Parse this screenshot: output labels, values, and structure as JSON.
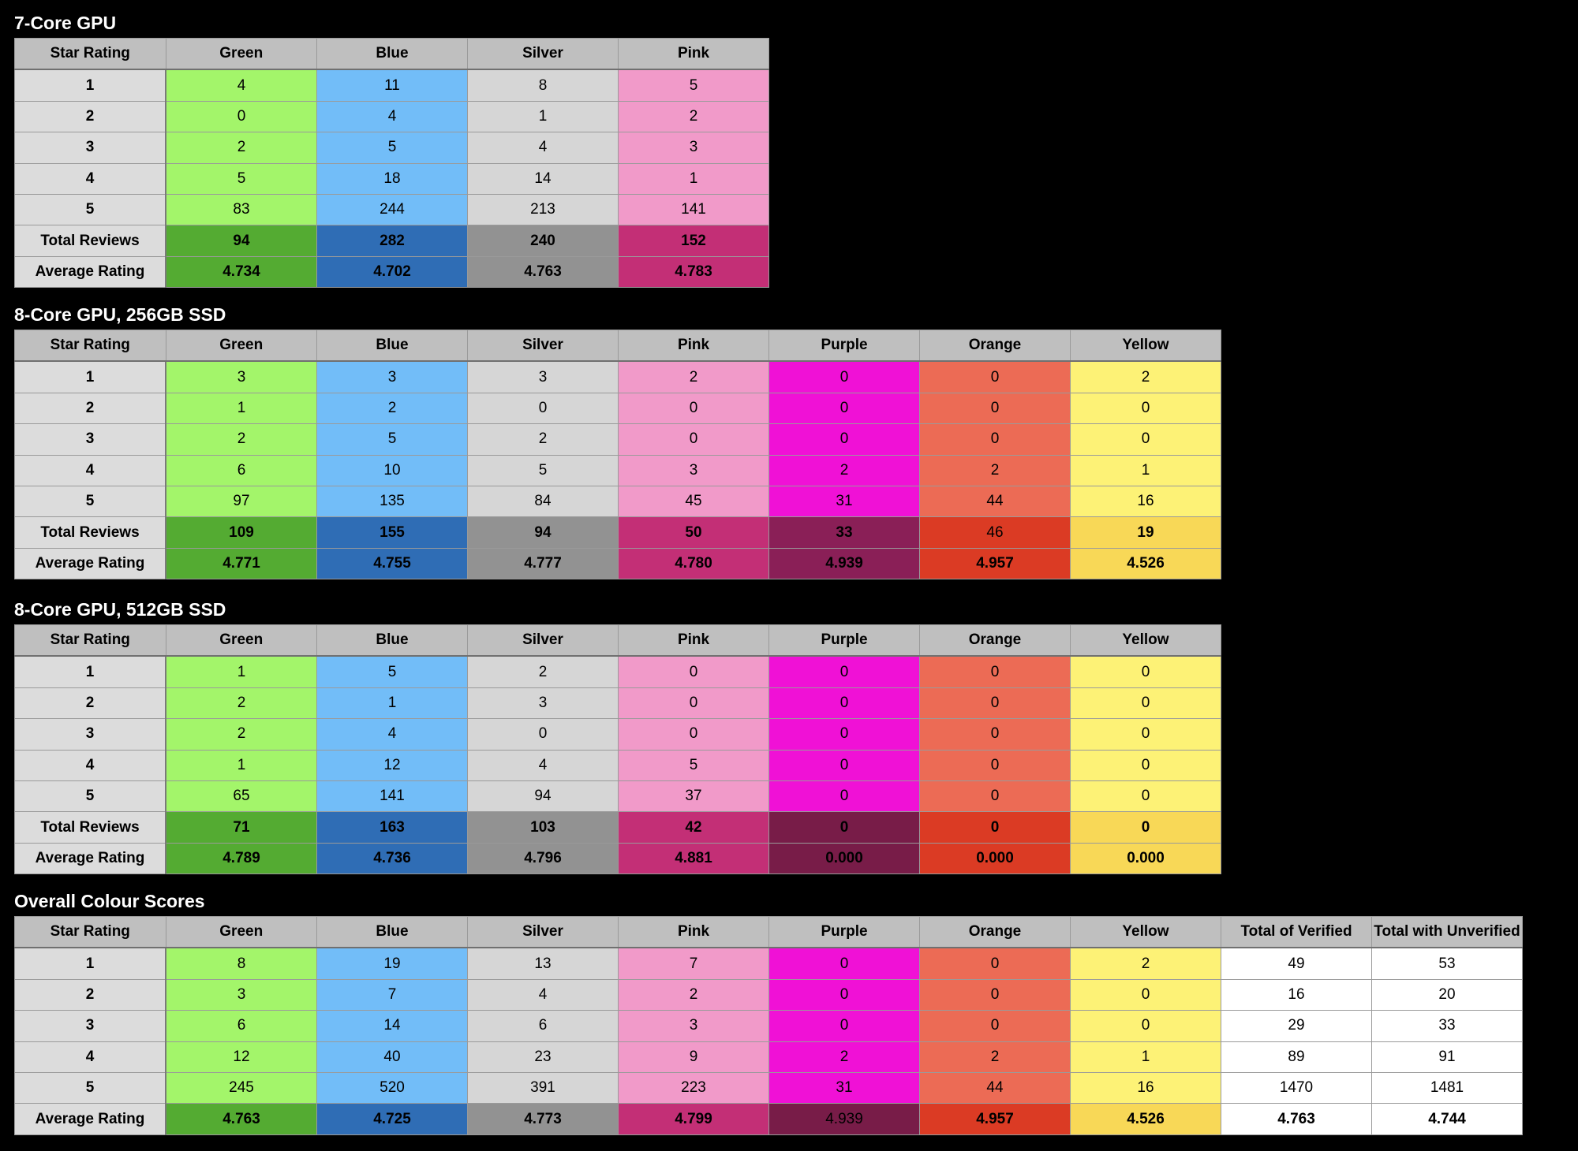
{
  "colors": {
    "header": "#bfbfbf",
    "label": "#dcdcdc",
    "light": {
      "Green": "#a3f56a",
      "Blue": "#72bdf8",
      "Silver": "#d6d6d6",
      "Pink": "#f19ac9",
      "Purple": "#f011d6",
      "Orange": "#ec6b55",
      "Yellow": "#fdf276",
      "white": "#ffffff"
    },
    "dark": {
      "Green": "#54ab32",
      "Blue": "#2f6db5",
      "Silver": "#929292",
      "Pink": "#c32f76",
      "Purple": "#8a1f57",
      "Purple2": "#781c48",
      "Orange": "#db3b24",
      "Yellow": "#f8d857",
      "white": "#ffffff"
    }
  },
  "tables": [
    {
      "title": "7-Core GPU",
      "columns": [
        "Star Rating",
        "Green",
        "Blue",
        "Silver",
        "Pink"
      ],
      "column_keys": [
        "Green",
        "Blue",
        "Silver",
        "Pink"
      ],
      "rows": [
        {
          "label": "1",
          "values": [
            "4",
            "11",
            "8",
            "5"
          ]
        },
        {
          "label": "2",
          "values": [
            "0",
            "4",
            "1",
            "2"
          ]
        },
        {
          "label": "3",
          "values": [
            "2",
            "5",
            "4",
            "3"
          ]
        },
        {
          "label": "4",
          "values": [
            "5",
            "18",
            "14",
            "1"
          ]
        },
        {
          "label": "5",
          "values": [
            "83",
            "244",
            "213",
            "141"
          ]
        }
      ],
      "summary_rows": [
        {
          "label": "Total Reviews",
          "values": [
            "94",
            "282",
            "240",
            "152"
          ]
        },
        {
          "label": "Average Rating",
          "values": [
            "4.734",
            "4.702",
            "4.763",
            "4.783"
          ]
        }
      ]
    },
    {
      "title": "8-Core GPU, 256GB SSD",
      "columns": [
        "Star Rating",
        "Green",
        "Blue",
        "Silver",
        "Pink",
        "Purple",
        "Orange",
        "Yellow"
      ],
      "column_keys": [
        "Green",
        "Blue",
        "Silver",
        "Pink",
        "Purple",
        "Orange",
        "Yellow"
      ],
      "rows": [
        {
          "label": "1",
          "values": [
            "3",
            "3",
            "3",
            "2",
            "0",
            "0",
            "2"
          ]
        },
        {
          "label": "2",
          "values": [
            "1",
            "2",
            "0",
            "0",
            "0",
            "0",
            "0"
          ]
        },
        {
          "label": "3",
          "values": [
            "2",
            "5",
            "2",
            "0",
            "0",
            "0",
            "0"
          ]
        },
        {
          "label": "4",
          "values": [
            "6",
            "10",
            "5",
            "3",
            "2",
            "2",
            "1"
          ]
        },
        {
          "label": "5",
          "values": [
            "97",
            "135",
            "84",
            "45",
            "31",
            "44",
            "16"
          ]
        }
      ],
      "summary_rows": [
        {
          "label": "Total Reviews",
          "values": [
            "109",
            "155",
            "94",
            "50",
            "33",
            "46",
            "19"
          ]
        },
        {
          "label": "Average Rating",
          "values": [
            "4.771",
            "4.755",
            "4.777",
            "4.780",
            "4.939",
            "4.957",
            "4.526"
          ]
        }
      ]
    },
    {
      "title": "8-Core GPU, 512GB SSD",
      "columns": [
        "Star Rating",
        "Green",
        "Blue",
        "Silver",
        "Pink",
        "Purple",
        "Orange",
        "Yellow"
      ],
      "column_keys": [
        "Green",
        "Blue",
        "Silver",
        "Pink",
        "Purple2",
        "Orange",
        "Yellow"
      ],
      "rows": [
        {
          "label": "1",
          "values": [
            "1",
            "5",
            "2",
            "0",
            "0",
            "0",
            "0"
          ]
        },
        {
          "label": "2",
          "values": [
            "2",
            "1",
            "3",
            "0",
            "0",
            "0",
            "0"
          ]
        },
        {
          "label": "3",
          "values": [
            "2",
            "4",
            "0",
            "0",
            "0",
            "0",
            "0"
          ]
        },
        {
          "label": "4",
          "values": [
            "1",
            "12",
            "4",
            "5",
            "0",
            "0",
            "0"
          ]
        },
        {
          "label": "5",
          "values": [
            "65",
            "141",
            "94",
            "37",
            "0",
            "0",
            "0"
          ]
        }
      ],
      "summary_rows": [
        {
          "label": "Total Reviews",
          "values": [
            "71",
            "163",
            "103",
            "42",
            "0",
            "0",
            "0"
          ]
        },
        {
          "label": "Average Rating",
          "values": [
            "4.789",
            "4.736",
            "4.796",
            "4.881",
            "0.000",
            "0.000",
            "0.000"
          ]
        }
      ]
    },
    {
      "title": "Overall Colour Scores",
      "columns": [
        "Star Rating",
        "Green",
        "Blue",
        "Silver",
        "Pink",
        "Purple",
        "Orange",
        "Yellow",
        "Total of Verified",
        "Total with Unverified"
      ],
      "column_keys": [
        "Green",
        "Blue",
        "Silver",
        "Pink",
        "Purple2",
        "Orange",
        "Yellow",
        "white",
        "white"
      ],
      "rows": [
        {
          "label": "1",
          "values": [
            "8",
            "19",
            "13",
            "7",
            "0",
            "0",
            "2",
            "49",
            "53"
          ]
        },
        {
          "label": "2",
          "values": [
            "3",
            "7",
            "4",
            "2",
            "0",
            "0",
            "0",
            "16",
            "20"
          ]
        },
        {
          "label": "3",
          "values": [
            "6",
            "14",
            "6",
            "3",
            "0",
            "0",
            "0",
            "29",
            "33"
          ]
        },
        {
          "label": "4",
          "values": [
            "12",
            "40",
            "23",
            "9",
            "2",
            "2",
            "1",
            "89",
            "91"
          ]
        },
        {
          "label": "5",
          "values": [
            "245",
            "520",
            "391",
            "223",
            "31",
            "44",
            "16",
            "1470",
            "1481"
          ]
        }
      ],
      "summary_rows": [
        {
          "label": "Average Rating",
          "values": [
            "4.763",
            "4.725",
            "4.773",
            "4.799",
            "4.939",
            "4.957",
            "4.526",
            "4.763",
            "4.744"
          ]
        }
      ]
    }
  ]
}
